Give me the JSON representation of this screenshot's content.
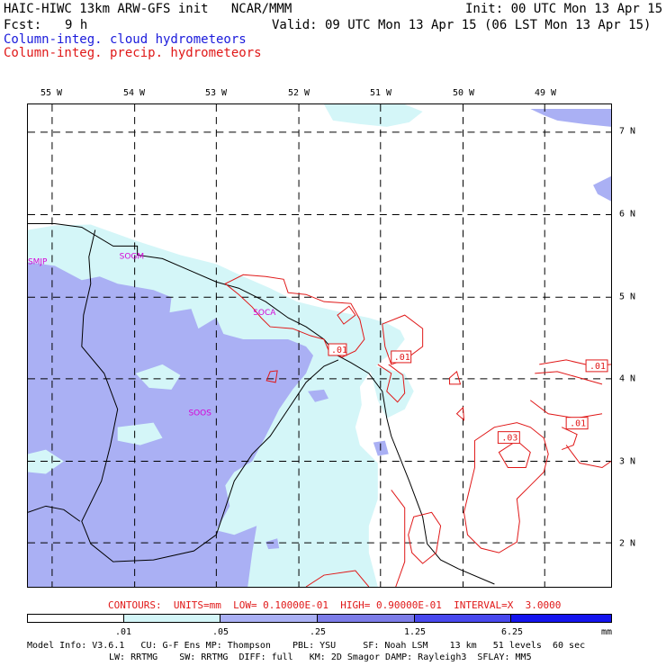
{
  "header": {
    "title": "HAIC-HIWC 13km ARW-GFS init   NCAR/MMM",
    "init": "Init: 00 UTC Mon 13 Apr 15",
    "fcst_label": "Fcst:",
    "fcst_value": "9 h",
    "valid": "Valid: 09 UTC Mon 13 Apr 15 (06 LST Mon 13 Apr 15)",
    "field1": "Column-integ. cloud hydrometeors",
    "field2": "Column-integ. precip. hydrometeors"
  },
  "map": {
    "lon_labels": [
      "55 W",
      "54 W",
      "53 W",
      "52 W",
      "51 W",
      "50 W",
      "49 W"
    ],
    "lat_labels": [
      "7 N",
      "6 N",
      "5 N",
      "4 N",
      "3 N",
      "2 N"
    ],
    "stations": [
      "SMJP",
      "SOGM",
      "SOCA",
      "SOOS"
    ],
    "contour_labels": [
      ".01",
      ".01",
      ".01",
      ".01",
      ".03"
    ]
  },
  "contours_text": "CONTOURS:  UNITS=mm  LOW= 0.10000E-01  HIGH= 0.90000E-01  INTERVAL=X  3.0000",
  "colorbar": {
    "tick_labels": [
      ".01",
      ".05",
      ".25",
      "1.25",
      "6.25"
    ],
    "units": "mm",
    "colors": [
      "#ffffff",
      "#d4f6f8",
      "#aab0f4",
      "#7c7ce8",
      "#4848ee",
      "#1414ee"
    ]
  },
  "model_info": {
    "line1": "Model Info: V3.6.1   CU: G-F Ens MP: Thompson    PBL: YSU     SF: Noah LSM    13 km   51 levels  60 sec",
    "line2": "LW: RRTMG    SW: RRTMG  DIFF: full   KM: 2D Smagor DAMP: Rayleigh3  SFLAY: MM5"
  }
}
